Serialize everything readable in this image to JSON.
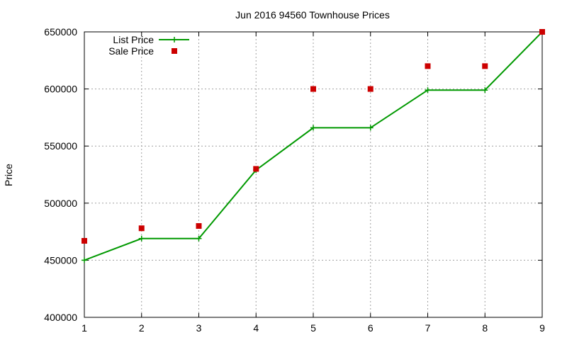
{
  "chart_data": {
    "type": "line",
    "title": "Jun 2016 94560 Townhouse Prices",
    "xlabel": "",
    "ylabel": "Price",
    "xlim": [
      1,
      9
    ],
    "ylim": [
      400000,
      650000
    ],
    "x_ticks": [
      1,
      2,
      3,
      4,
      5,
      6,
      7,
      8,
      9
    ],
    "y_ticks": [
      400000,
      450000,
      500000,
      550000,
      600000,
      650000
    ],
    "grid": true,
    "legend_position": "top-left",
    "series": [
      {
        "name": "List Price",
        "style": "line-with-plus-markers",
        "color": "#009900",
        "x": [
          1,
          2,
          3,
          4,
          5,
          6,
          7,
          8,
          9
        ],
        "y": [
          450000,
          469000,
          469000,
          529000,
          566000,
          566000,
          599000,
          599000,
          650000
        ]
      },
      {
        "name": "Sale Price",
        "style": "square-markers",
        "color": "#cc0000",
        "x": [
          1,
          2,
          3,
          4,
          5,
          6,
          7,
          8,
          9
        ],
        "y": [
          467000,
          478000,
          480000,
          530000,
          600000,
          600000,
          620000,
          620000,
          650000
        ]
      }
    ]
  }
}
